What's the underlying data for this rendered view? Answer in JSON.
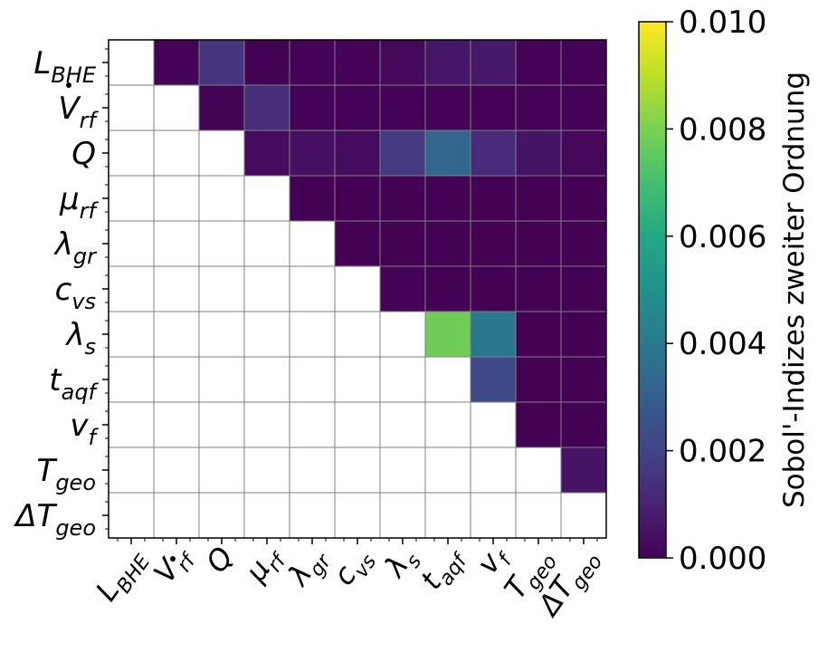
{
  "chart_data": {
    "type": "heatmap",
    "title": "",
    "colorbar": {
      "label": "Sobol'-Indizes zweiter Ordnung",
      "ticks": [
        "0.000",
        "0.002",
        "0.004",
        "0.006",
        "0.008",
        "0.010"
      ],
      "tick_values": [
        0.0,
        0.002,
        0.004,
        0.006,
        0.008,
        0.01
      ],
      "range": [
        0.0,
        0.01
      ],
      "colormap": "viridis"
    },
    "row_labels": [
      {
        "base": "L",
        "dot": false,
        "sub": "BHE"
      },
      {
        "base": "V",
        "dot": true,
        "sub": "rf"
      },
      {
        "base": "Q",
        "dot": false,
        "sub": ""
      },
      {
        "base": "μ",
        "dot": false,
        "sub": "rf"
      },
      {
        "base": "λ",
        "dot": false,
        "sub": "gr"
      },
      {
        "base": "c",
        "dot": false,
        "sub": "vs"
      },
      {
        "base": "λ",
        "dot": false,
        "sub": "s"
      },
      {
        "base": "t",
        "dot": false,
        "sub": "aqf"
      },
      {
        "base": "v",
        "dot": false,
        "sub": "f"
      },
      {
        "base": "T",
        "dot": false,
        "sub": "geo"
      },
      {
        "base": "ΔT",
        "dot": false,
        "sub": "geo"
      }
    ],
    "col_labels": [
      {
        "base": "L",
        "dot": false,
        "sub": "BHE"
      },
      {
        "base": "V",
        "dot": true,
        "sub": "rf"
      },
      {
        "base": "Q",
        "dot": false,
        "sub": ""
      },
      {
        "base": "μ",
        "dot": false,
        "sub": "rf"
      },
      {
        "base": "λ",
        "dot": false,
        "sub": "gr"
      },
      {
        "base": "c",
        "dot": false,
        "sub": "vs"
      },
      {
        "base": "λ",
        "dot": false,
        "sub": "s"
      },
      {
        "base": "t",
        "dot": false,
        "sub": "aqf"
      },
      {
        "base": "v",
        "dot": false,
        "sub": "f"
      },
      {
        "base": "T",
        "dot": false,
        "sub": "geo"
      },
      {
        "base": "ΔT",
        "dot": false,
        "sub": "geo"
      }
    ],
    "values": [
      [
        null,
        5e-05,
        0.0015,
        3e-05,
        5e-05,
        5e-05,
        0.0002,
        0.0006,
        0.0007,
        5e-05,
        5e-05
      ],
      [
        null,
        null,
        0.0001,
        0.0013,
        5e-05,
        5e-05,
        5e-05,
        5e-05,
        5e-05,
        5e-05,
        5e-05
      ],
      [
        null,
        null,
        null,
        0.0003,
        0.0004,
        0.0003,
        0.0017,
        0.0033,
        0.0012,
        0.0005,
        0.0002
      ],
      [
        null,
        null,
        null,
        null,
        3e-05,
        3e-05,
        3e-05,
        3e-05,
        3e-05,
        3e-05,
        3e-05
      ],
      [
        null,
        null,
        null,
        null,
        null,
        3e-05,
        3e-05,
        3e-05,
        3e-05,
        3e-05,
        3e-05
      ],
      [
        null,
        null,
        null,
        null,
        null,
        null,
        5e-05,
        3e-05,
        3e-05,
        3e-05,
        3e-05
      ],
      [
        null,
        null,
        null,
        null,
        null,
        null,
        null,
        0.0078,
        0.004,
        3e-05,
        3e-05
      ],
      [
        null,
        null,
        null,
        null,
        null,
        null,
        null,
        null,
        0.0022,
        3e-05,
        3e-05
      ],
      [
        null,
        null,
        null,
        null,
        null,
        null,
        null,
        null,
        null,
        3e-05,
        3e-05
      ],
      [
        null,
        null,
        null,
        null,
        null,
        null,
        null,
        null,
        null,
        null,
        0.0005
      ],
      [
        null,
        null,
        null,
        null,
        null,
        null,
        null,
        null,
        null,
        null,
        null
      ]
    ],
    "grid": true
  }
}
